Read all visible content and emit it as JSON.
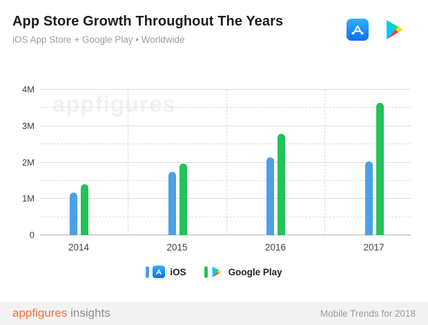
{
  "header": {
    "title": "App Store Growth Throughout The Years",
    "subtitle": "iOS App Store + Google Play • Worldwide"
  },
  "chart_data": {
    "type": "bar",
    "categories": [
      "2014",
      "2015",
      "2016",
      "2017"
    ],
    "series": [
      {
        "name": "iOS",
        "color": "#4d9fe8",
        "values_millions": [
          1.18,
          1.75,
          2.15,
          2.02
        ]
      },
      {
        "name": "Google Play",
        "color": "#25c15b",
        "values_millions": [
          1.4,
          1.97,
          2.78,
          3.64
        ]
      }
    ],
    "ylim_millions": [
      0,
      4
    ],
    "y_ticks": [
      {
        "label": "0",
        "value": 0
      },
      {
        "label": "1M",
        "value": 1
      },
      {
        "label": "2M",
        "value": 2
      },
      {
        "label": "3M",
        "value": 3
      },
      {
        "label": "4M",
        "value": 4
      }
    ],
    "grid": {
      "horizontal_solid_step_millions": 1,
      "horizontal_dashed_step_millions": 0.5,
      "vertical_dashed_group_separators": true
    },
    "legend_position": "bottom",
    "watermark": "appfigures",
    "title": "App Store Growth Throughout The Years",
    "xlabel": "",
    "ylabel": ""
  },
  "legend": {
    "items": [
      {
        "label": "iOS",
        "icon": "app-store-icon",
        "swatch_color": "#4d9fe8"
      },
      {
        "label": "Google Play",
        "icon": "google-play-icon",
        "swatch_color": "#25c15b"
      }
    ]
  },
  "footer": {
    "brand": "appfigures",
    "brand_suffix": "insights",
    "right_text": "Mobile Trends for 2018"
  },
  "colors": {
    "ios_bar": "#4d9fe8",
    "google_play_bar": "#25c15b",
    "brand_orange": "#f3703b",
    "grid_line": "#dcdcdc",
    "axis_text": "#3f3f3f",
    "subtitle_text": "#9c9c9c",
    "footer_bg": "#f3f3f3"
  }
}
